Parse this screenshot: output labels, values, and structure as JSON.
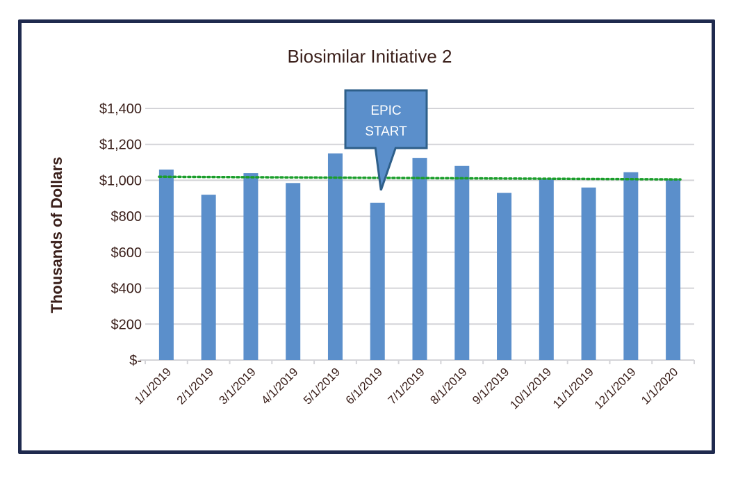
{
  "chart_data": {
    "type": "bar",
    "title": "Biosimilar Initiative 2",
    "xlabel": "",
    "ylabel": "Thousands of Dollars",
    "ylim": [
      0,
      1400
    ],
    "yticks": [
      0,
      200,
      400,
      600,
      800,
      1000,
      1200,
      1400
    ],
    "ytick_labels": [
      "$-",
      "$200",
      "$400",
      "$600",
      "$800",
      "$1,000",
      "$1,200",
      "$1,400"
    ],
    "categories": [
      "1/1/2019",
      "2/1/2019",
      "3/1/2019",
      "4/1/2019",
      "5/1/2019",
      "6/1/2019",
      "7/1/2019",
      "8/1/2019",
      "9/1/2019",
      "10/1/2019",
      "11/1/2019",
      "12/1/2019",
      "1/1/2020"
    ],
    "values": [
      1060,
      920,
      1040,
      985,
      1150,
      875,
      1125,
      1080,
      930,
      1010,
      960,
      1045,
      1005
    ],
    "trendline": {
      "start": 1020,
      "end": 1005,
      "color": "#1a9e2a",
      "style": "dotted"
    },
    "annotation": {
      "line1": "EPIC",
      "line2": "START",
      "category": "6/1/2019"
    },
    "grid": true,
    "colors": {
      "bar": "#5b8fcb",
      "grid": "#d4d4d8",
      "text": "#3a1f1a",
      "frame": "#1f2a4e",
      "callout_fill": "#5b8fcb",
      "callout_border": "#2e5f8a"
    }
  }
}
